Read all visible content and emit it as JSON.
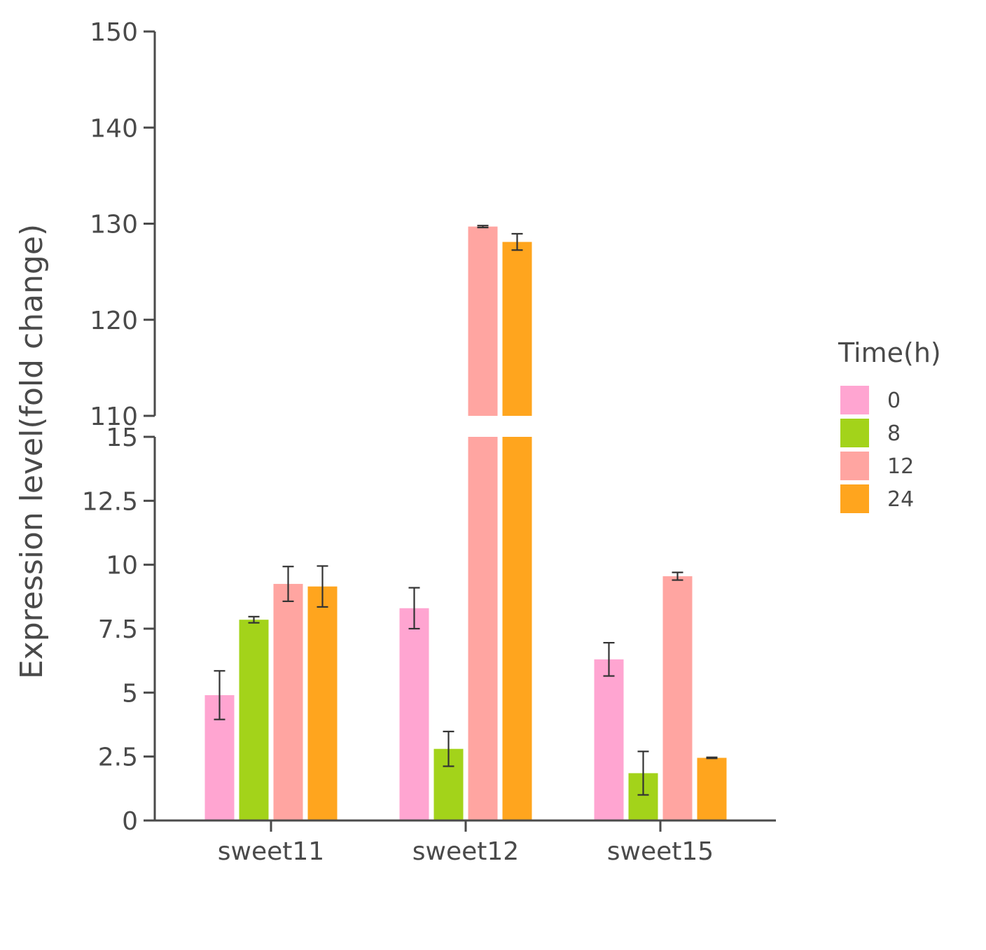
{
  "chart_data": {
    "type": "bar",
    "ylabel": "Expression level(fold change)",
    "xlabel": "",
    "categories": [
      "sweet11",
      "sweet12",
      "sweet15"
    ],
    "legend": {
      "title": "Time(h)",
      "position": "right"
    },
    "axis_break": {
      "lower": {
        "ylim": [
          0,
          15
        ],
        "ticks": [
          "0",
          "2.5",
          "5",
          "7.5",
          "10",
          "12.5",
          "15"
        ]
      },
      "upper": {
        "ylim": [
          110,
          150
        ],
        "ticks": [
          "110",
          "120",
          "130",
          "140",
          "150"
        ]
      }
    },
    "series": [
      {
        "name": "0",
        "color": "#FFA5D1",
        "values": [
          4.9,
          8.3,
          6.3
        ],
        "errors": [
          0.95,
          0.8,
          0.65
        ]
      },
      {
        "name": "8",
        "color": "#A3D31A",
        "values": [
          7.85,
          2.8,
          1.85
        ],
        "errors": [
          0.12,
          0.68,
          0.85
        ]
      },
      {
        "name": "12",
        "color": "#FFA5A1",
        "values": [
          9.25,
          129.7,
          9.55
        ],
        "errors": [
          0.68,
          0.1,
          0.15
        ]
      },
      {
        "name": "24",
        "color": "#FFA51E",
        "values": [
          9.15,
          128.1,
          2.45
        ],
        "errors": [
          0.8,
          0.85,
          0.02
        ]
      }
    ]
  }
}
